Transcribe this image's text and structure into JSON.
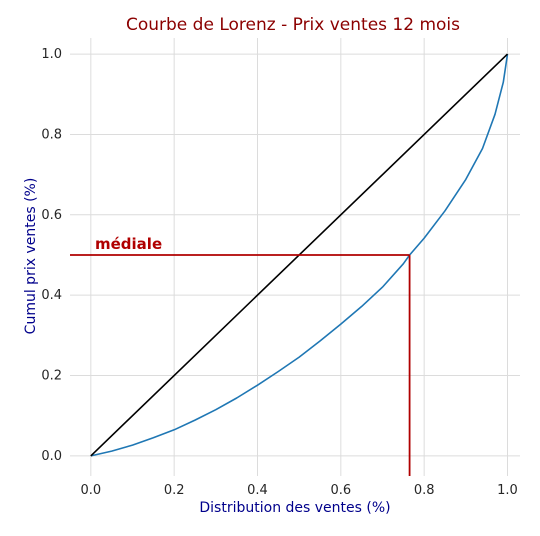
{
  "chart_data": {
    "type": "line",
    "title": "Courbe de Lorenz - Prix ventes 12 mois",
    "xlabel": "Distribution des ventes (%)",
    "ylabel": "Cumul prix ventes (%)",
    "xlim": [
      -0.05,
      1.03
    ],
    "ylim": [
      -0.05,
      1.04
    ],
    "xticks": [
      "0.0",
      "0.2",
      "0.4",
      "0.6",
      "0.8",
      "1.0"
    ],
    "yticks": [
      "0.0",
      "0.2",
      "0.4",
      "0.6",
      "0.8",
      "1.0"
    ],
    "grid": true,
    "series": [
      {
        "role": "lorenz-curve",
        "color": "#1f77b4",
        "x": [
          0.0,
          0.05,
          0.1,
          0.15,
          0.2,
          0.25,
          0.3,
          0.35,
          0.4,
          0.45,
          0.5,
          0.55,
          0.6,
          0.65,
          0.7,
          0.75,
          0.765,
          0.8,
          0.85,
          0.9,
          0.94,
          0.97,
          0.99,
          1.0
        ],
        "y": [
          0.0,
          0.012,
          0.027,
          0.045,
          0.065,
          0.089,
          0.115,
          0.144,
          0.176,
          0.21,
          0.246,
          0.286,
          0.328,
          0.372,
          0.42,
          0.478,
          0.5,
          0.542,
          0.61,
          0.688,
          0.765,
          0.85,
          0.93,
          1.0
        ]
      },
      {
        "role": "equality-line",
        "color": "#000000",
        "x": [
          0.0,
          1.0
        ],
        "y": [
          0.0,
          1.0
        ]
      }
    ],
    "median_marker": {
      "label": "médiale",
      "color": "#b00000",
      "x": 0.765,
      "y": 0.5
    }
  }
}
